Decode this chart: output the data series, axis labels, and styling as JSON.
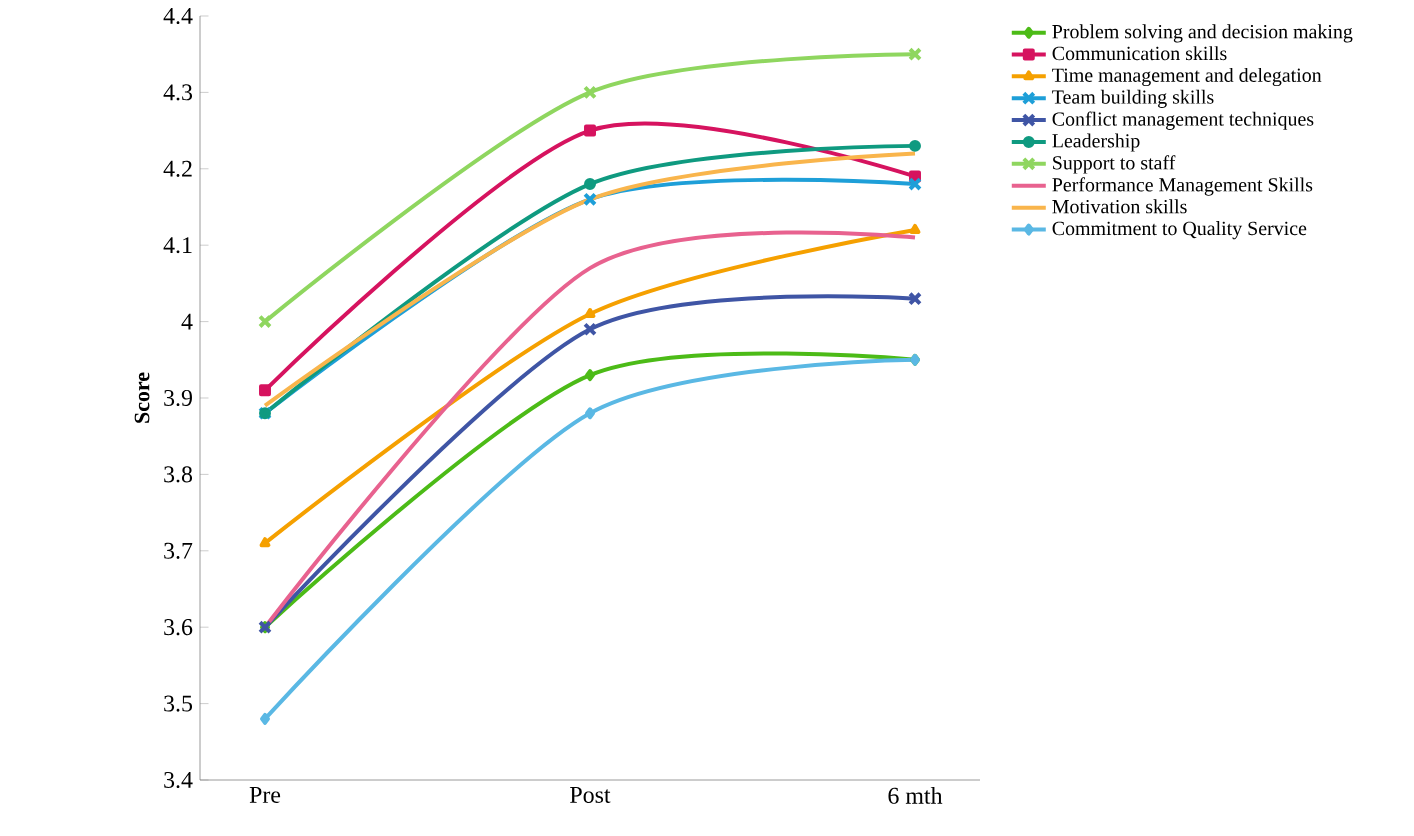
{
  "chart_data": {
    "type": "line",
    "ylabel": "Score",
    "categories": [
      "Pre",
      "Post",
      "6 mth"
    ],
    "ylim": [
      3.4,
      4.4
    ],
    "yticks": [
      3.4,
      3.5,
      3.6,
      3.7,
      3.8,
      3.9,
      {
        "value": 4,
        "label": "4"
      },
      4.1,
      4.2,
      4.3,
      4.4
    ],
    "legend": "right",
    "grid": false,
    "series": [
      {
        "name": "Problem solving and decision making",
        "color": "#4cbb17",
        "marker": "diamond",
        "values": [
          3.6,
          3.93,
          3.95
        ]
      },
      {
        "name": "Communication skills",
        "color": "#d6135f",
        "marker": "square",
        "values": [
          3.91,
          4.25,
          4.19
        ]
      },
      {
        "name": "Time management and delegation",
        "color": "#f5a000",
        "marker": "triangle",
        "values": [
          3.71,
          4.01,
          4.12
        ]
      },
      {
        "name": "Team building skills",
        "color": "#1e9fd8",
        "marker": "cross",
        "values": [
          3.88,
          4.16,
          4.18
        ]
      },
      {
        "name": "Conflict management techniques",
        "color": "#3f55a5",
        "marker": "cross",
        "values": [
          3.6,
          3.99,
          4.03
        ]
      },
      {
        "name": "Leadership",
        "color": "#0f9a80",
        "marker": "circle",
        "values": [
          3.88,
          4.18,
          4.23
        ]
      },
      {
        "name": "Support to staff",
        "color": "#8fd65f",
        "marker": "cross",
        "values": [
          4.0,
          4.3,
          4.35
        ]
      },
      {
        "name": "Performance Management Skills",
        "color": "#e8628f",
        "marker": "none",
        "values": [
          3.6,
          4.07,
          4.11
        ]
      },
      {
        "name": "Motivation skills",
        "color": "#f9b54c",
        "marker": "none",
        "values": [
          3.89,
          4.16,
          4.22
        ]
      },
      {
        "name": "Commitment to Quality Service",
        "color": "#5ab8e4",
        "marker": "diamond",
        "values": [
          3.48,
          3.88,
          3.95
        ]
      }
    ]
  }
}
